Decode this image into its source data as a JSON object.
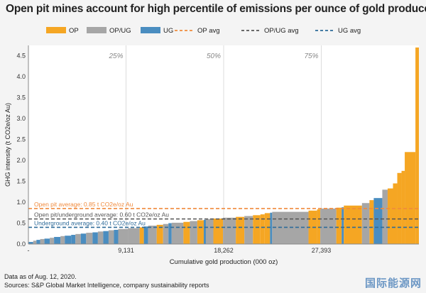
{
  "title": "Open pit mines account for high percentile of emissions per ounce of gold produced",
  "colors": {
    "OP": "#f5a623",
    "OP/UG": "#a6a6a6",
    "UG": "#4a8dc0",
    "OP_avg": "#f08a3c",
    "OPUG_avg": "#555555",
    "UG_avg": "#2e6b99",
    "grid": "#dcdcdc",
    "background": "#ffffff"
  },
  "notes": {
    "line1": "Data as of Aug. 12, 2020.",
    "line2": "Sources: S&P Global Market Intelligence, company sustainability reports"
  },
  "watermark": "国际能源网",
  "chart_data": {
    "type": "bar",
    "subtype": "variable-width (cumulative) bar",
    "xlabel": "Cumulative gold production (000 oz)",
    "ylabel": "GHG intensity (t CO2e/oz Au)",
    "xlim": [
      0,
      36524
    ],
    "ylim": [
      0,
      4.75
    ],
    "xticks": [
      0,
      9131,
      18262,
      27393
    ],
    "xtick_labels": [
      "-",
      "9,131",
      "18,262",
      "27,393"
    ],
    "yticks": [
      0,
      0.5,
      1.0,
      1.5,
      2.0,
      2.5,
      3.0,
      3.5,
      4.0,
      4.5
    ],
    "ytick_labels": [
      "0.0",
      "0.5",
      "1.0",
      "1.5",
      "2.0",
      "2.5",
      "3.0",
      "3.5",
      "4.0",
      "4.5"
    ],
    "grid": "vertical at percentiles",
    "percentile_lines": [
      {
        "label": "25%",
        "x": 9131
      },
      {
        "label": "50%",
        "x": 18262
      },
      {
        "label": "75%",
        "x": 27393
      }
    ],
    "legend_placement": "top",
    "legend": [
      {
        "label": "OP",
        "kind": "bar",
        "key": "OP"
      },
      {
        "label": "OP/UG",
        "kind": "bar",
        "key": "OP/UG"
      },
      {
        "label": "UG",
        "kind": "bar",
        "key": "UG"
      },
      {
        "label": "OP avg",
        "kind": "dash",
        "key": "OP_avg"
      },
      {
        "label": "OP/UG avg",
        "kind": "dash",
        "key": "OPUG_avg"
      },
      {
        "label": "UG avg",
        "kind": "dash",
        "key": "UG_avg"
      }
    ],
    "averages": [
      {
        "key": "OP_avg",
        "value": 0.85,
        "label": "Open pit average: 0.85 t CO2e/oz Au"
      },
      {
        "key": "OPUG_avg",
        "value": 0.6,
        "label": "Open pit/underground average: 0.60 t CO2e/oz Au"
      },
      {
        "key": "UG_avg",
        "value": 0.4,
        "label": "Underground average: 0.40 t CO2e/oz Au"
      }
    ],
    "segments": [
      {
        "x0": 0,
        "x1": 450,
        "y": 0.05,
        "type": "UG"
      },
      {
        "x0": 450,
        "x1": 750,
        "y": 0.08,
        "type": "OP/UG"
      },
      {
        "x0": 750,
        "x1": 1100,
        "y": 0.1,
        "type": "UG"
      },
      {
        "x0": 1100,
        "x1": 1500,
        "y": 0.12,
        "type": "OP/UG"
      },
      {
        "x0": 1500,
        "x1": 2000,
        "y": 0.13,
        "type": "UG"
      },
      {
        "x0": 2000,
        "x1": 2400,
        "y": 0.15,
        "type": "OP/UG"
      },
      {
        "x0": 2400,
        "x1": 3000,
        "y": 0.17,
        "type": "UG"
      },
      {
        "x0": 3000,
        "x1": 3400,
        "y": 0.19,
        "type": "OP/UG"
      },
      {
        "x0": 3400,
        "x1": 4000,
        "y": 0.2,
        "type": "UG"
      },
      {
        "x0": 4000,
        "x1": 4400,
        "y": 0.22,
        "type": "UG"
      },
      {
        "x0": 4400,
        "x1": 4900,
        "y": 0.24,
        "type": "OP/UG"
      },
      {
        "x0": 4900,
        "x1": 5400,
        "y": 0.25,
        "type": "UG"
      },
      {
        "x0": 5400,
        "x1": 6000,
        "y": 0.27,
        "type": "OP/UG"
      },
      {
        "x0": 6000,
        "x1": 6500,
        "y": 0.28,
        "type": "UG"
      },
      {
        "x0": 6500,
        "x1": 7000,
        "y": 0.3,
        "type": "OP/UG"
      },
      {
        "x0": 7000,
        "x1": 7500,
        "y": 0.31,
        "type": "UG"
      },
      {
        "x0": 7500,
        "x1": 8000,
        "y": 0.33,
        "type": "OP/UG"
      },
      {
        "x0": 8000,
        "x1": 8400,
        "y": 0.34,
        "type": "UG"
      },
      {
        "x0": 8400,
        "x1": 9300,
        "y": 0.36,
        "type": "OP/UG"
      },
      {
        "x0": 9300,
        "x1": 10400,
        "y": 0.38,
        "type": "OP/UG"
      },
      {
        "x0": 10400,
        "x1": 10800,
        "y": 0.4,
        "type": "OP"
      },
      {
        "x0": 10800,
        "x1": 11200,
        "y": 0.42,
        "type": "UG"
      },
      {
        "x0": 11200,
        "x1": 12000,
        "y": 0.44,
        "type": "OP/UG"
      },
      {
        "x0": 12000,
        "x1": 12600,
        "y": 0.46,
        "type": "OP"
      },
      {
        "x0": 12600,
        "x1": 13100,
        "y": 0.48,
        "type": "OP/UG"
      },
      {
        "x0": 13100,
        "x1": 13400,
        "y": 0.5,
        "type": "UG"
      },
      {
        "x0": 13400,
        "x1": 14500,
        "y": 0.51,
        "type": "OP/UG"
      },
      {
        "x0": 14500,
        "x1": 15100,
        "y": 0.53,
        "type": "OP"
      },
      {
        "x0": 15100,
        "x1": 15800,
        "y": 0.55,
        "type": "OP/UG"
      },
      {
        "x0": 15800,
        "x1": 16400,
        "y": 0.57,
        "type": "OP"
      },
      {
        "x0": 16400,
        "x1": 16600,
        "y": 0.58,
        "type": "UG"
      },
      {
        "x0": 16600,
        "x1": 17300,
        "y": 0.6,
        "type": "OP/UG"
      },
      {
        "x0": 17300,
        "x1": 18200,
        "y": 0.61,
        "type": "OP"
      },
      {
        "x0": 18200,
        "x1": 19400,
        "y": 0.63,
        "type": "OP/UG"
      },
      {
        "x0": 19400,
        "x1": 20200,
        "y": 0.65,
        "type": "OP"
      },
      {
        "x0": 20200,
        "x1": 21000,
        "y": 0.67,
        "type": "OP/UG"
      },
      {
        "x0": 21000,
        "x1": 21700,
        "y": 0.69,
        "type": "OP"
      },
      {
        "x0": 21700,
        "x1": 22100,
        "y": 0.71,
        "type": "OP"
      },
      {
        "x0": 22100,
        "x1": 22600,
        "y": 0.74,
        "type": "OP"
      },
      {
        "x0": 22600,
        "x1": 22800,
        "y": 0.75,
        "type": "UG"
      },
      {
        "x0": 22800,
        "x1": 26200,
        "y": 0.77,
        "type": "OP/UG"
      },
      {
        "x0": 26200,
        "x1": 27000,
        "y": 0.8,
        "type": "OP"
      },
      {
        "x0": 27000,
        "x1": 27300,
        "y": 0.83,
        "type": "OP"
      },
      {
        "x0": 27300,
        "x1": 28800,
        "y": 0.85,
        "type": "OP/UG"
      },
      {
        "x0": 28800,
        "x1": 29300,
        "y": 0.87,
        "type": "OP"
      },
      {
        "x0": 29300,
        "x1": 29500,
        "y": 0.88,
        "type": "UG"
      },
      {
        "x0": 29500,
        "x1": 31200,
        "y": 0.92,
        "type": "OP"
      },
      {
        "x0": 31200,
        "x1": 31900,
        "y": 0.98,
        "type": "OP/UG"
      },
      {
        "x0": 31900,
        "x1": 32300,
        "y": 1.05,
        "type": "OP"
      },
      {
        "x0": 32300,
        "x1": 33100,
        "y": 1.1,
        "type": "UG"
      },
      {
        "x0": 33100,
        "x1": 33600,
        "y": 1.3,
        "type": "OP/UG"
      },
      {
        "x0": 33600,
        "x1": 34100,
        "y": 1.33,
        "type": "OP"
      },
      {
        "x0": 34100,
        "x1": 34500,
        "y": 1.45,
        "type": "OP"
      },
      {
        "x0": 34500,
        "x1": 34900,
        "y": 1.7,
        "type": "OP"
      },
      {
        "x0": 34900,
        "x1": 35200,
        "y": 1.75,
        "type": "OP"
      },
      {
        "x0": 35200,
        "x1": 36200,
        "y": 2.2,
        "type": "OP"
      },
      {
        "x0": 36200,
        "x1": 36524,
        "y": 4.7,
        "type": "OP"
      }
    ]
  }
}
